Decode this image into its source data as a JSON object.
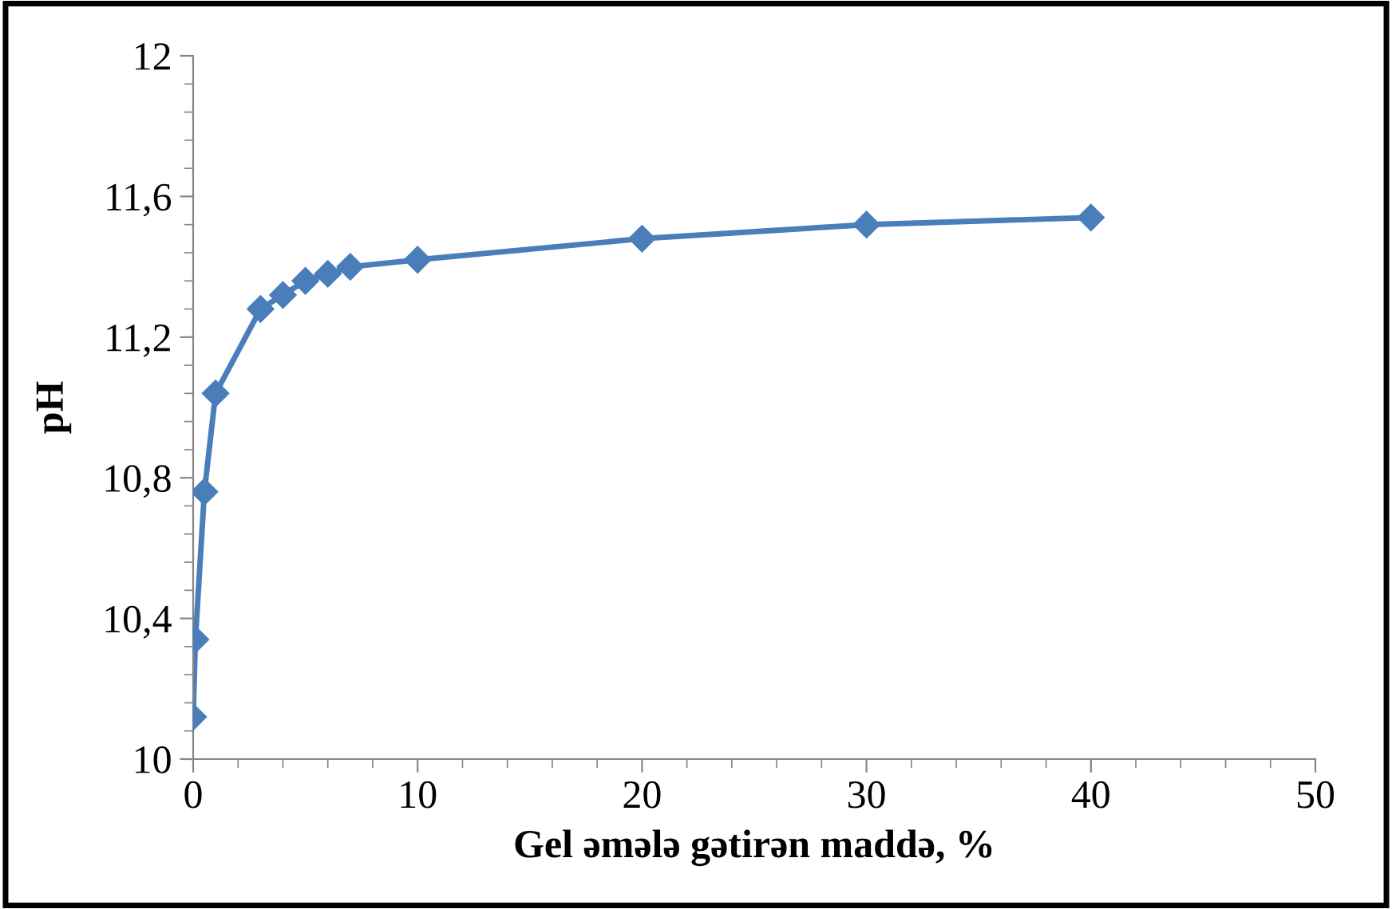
{
  "chart_data": {
    "type": "line",
    "xlabel": "Gel əmələ gətirən maddə, %",
    "ylabel": "pH",
    "x": [
      0,
      0.1,
      0.5,
      1,
      3,
      4,
      5,
      6,
      7,
      10,
      20,
      30,
      40
    ],
    "series": [
      {
        "color": "#4a7ebb",
        "values": [
          10.12,
          10.34,
          10.76,
          11.04,
          11.28,
          11.32,
          11.36,
          11.38,
          11.4,
          11.42,
          11.48,
          11.52,
          11.54
        ]
      }
    ],
    "xlim": [
      0,
      50
    ],
    "xticks": [
      0,
      10,
      20,
      30,
      40,
      50
    ],
    "ylim": [
      10,
      12
    ],
    "yticks": [
      {
        "value": 10,
        "label": "10"
      },
      {
        "value": 10.4,
        "label": "10,4"
      },
      {
        "value": 10.8,
        "label": "10,8"
      },
      {
        "value": 11.2,
        "label": "11,2"
      },
      {
        "value": 11.6,
        "label": "11,6"
      },
      {
        "value": 12,
        "label": "12"
      }
    ],
    "marker": "diamond",
    "line_style": "solid",
    "grid": false
  }
}
